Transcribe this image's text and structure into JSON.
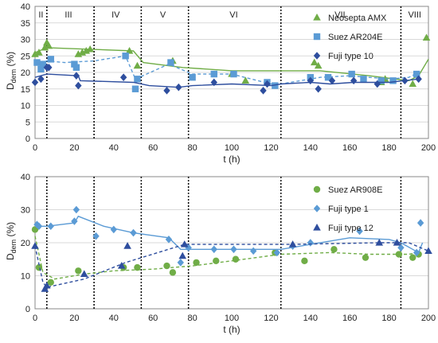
{
  "chart_data": [
    {
      "type": "scatter",
      "xlabel": "t (h)",
      "ylabel": "D",
      "ylabel_sub": "dem",
      "ylabel_unit": "(%)",
      "xlim": [
        0,
        200
      ],
      "ylim": [
        0,
        40
      ],
      "xticks": [
        0,
        20,
        40,
        60,
        80,
        100,
        120,
        140,
        160,
        180,
        200
      ],
      "yticks": [
        0,
        5,
        10,
        15,
        20,
        25,
        30,
        35,
        40
      ],
      "legend_position": "top-right",
      "phase_boundaries": [
        6,
        30,
        54,
        78,
        125,
        186
      ],
      "phases": [
        {
          "label": "II",
          "x": 3
        },
        {
          "label": "III",
          "x": 17
        },
        {
          "label": "IV",
          "x": 41
        },
        {
          "label": "V",
          "x": 65
        },
        {
          "label": "VI",
          "x": 101
        },
        {
          "label": "VII",
          "x": 155
        },
        {
          "label": "VIII",
          "x": 193
        }
      ],
      "series": [
        {
          "name": "Neosepta AMX",
          "color": "#70ad47",
          "marker": "triangle",
          "line": "solid",
          "points": [
            [
              0,
              25.5
            ],
            [
              2,
              26
            ],
            [
              5,
              27.5
            ],
            [
              6,
              29
            ],
            [
              7,
              28
            ],
            [
              22,
              25.5
            ],
            [
              24,
              26
            ],
            [
              26,
              26.5
            ],
            [
              28,
              27
            ],
            [
              48,
              26.5
            ],
            [
              52,
              22
            ],
            [
              70,
              23.5
            ],
            [
              100,
              19.5
            ],
            [
              107,
              17.5
            ],
            [
              142,
              23
            ],
            [
              144,
              22
            ],
            [
              176,
              17
            ],
            [
              178,
              18
            ],
            [
              192,
              16.5
            ],
            [
              199,
              30.5
            ]
          ],
          "trend": [
            [
              0,
              26
            ],
            [
              6,
              27.5
            ],
            [
              28,
              27
            ],
            [
              50,
              26.5
            ],
            [
              55,
              23
            ],
            [
              75,
              21.5
            ],
            [
              100,
              20.5
            ],
            [
              140,
              20.5
            ],
            [
              145,
              20.5
            ],
            [
              170,
              19
            ],
            [
              190,
              17.5
            ],
            [
              195,
              19
            ],
            [
              200,
              24
            ]
          ]
        },
        {
          "name": "Suez AR204E",
          "color": "#5b9bd5",
          "marker": "square",
          "line": "dashed",
          "points": [
            [
              1,
              23
            ],
            [
              3,
              21
            ],
            [
              4,
              22.5
            ],
            [
              8,
              24
            ],
            [
              20,
              22.5
            ],
            [
              21,
              21.5
            ],
            [
              46,
              25
            ],
            [
              51,
              15
            ],
            [
              52,
              18
            ],
            [
              69,
              23
            ],
            [
              80,
              18.5
            ],
            [
              91,
              19.5
            ],
            [
              101,
              19.5
            ],
            [
              118,
              17
            ],
            [
              122,
              16
            ],
            [
              140,
              18.5
            ],
            [
              149,
              18.5
            ],
            [
              161,
              19.5
            ],
            [
              167,
              18
            ],
            [
              176,
              17.5
            ],
            [
              182,
              17.5
            ],
            [
              194,
              19.5
            ]
          ],
          "trend": [
            [
              0,
              22.5
            ],
            [
              6,
              23.5
            ],
            [
              15,
              23
            ],
            [
              30,
              23.5
            ],
            [
              46,
              25
            ],
            [
              51,
              18
            ],
            [
              68,
              22.5
            ],
            [
              80,
              19.5
            ],
            [
              100,
              19.5
            ],
            [
              120,
              16.5
            ],
            [
              125,
              16.5
            ],
            [
              145,
              18.5
            ],
            [
              160,
              19
            ],
            [
              180,
              18
            ],
            [
              190,
              18.5
            ],
            [
              195,
              20
            ]
          ]
        },
        {
          "name": "Fuji type 10",
          "color": "#2e4e9e",
          "marker": "diamond",
          "line": "solid",
          "points": [
            [
              0,
              17
            ],
            [
              3,
              18
            ],
            [
              6,
              21.5
            ],
            [
              7,
              21.5
            ],
            [
              21,
              19
            ],
            [
              22,
              16
            ],
            [
              45,
              18.5
            ],
            [
              67,
              14.5
            ],
            [
              73,
              15.5
            ],
            [
              91,
              17
            ],
            [
              116,
              14.5
            ],
            [
              118,
              16.5
            ],
            [
              140,
              17.5
            ],
            [
              144,
              15
            ],
            [
              151,
              17.5
            ],
            [
              162,
              17.5
            ],
            [
              174,
              16.5
            ],
            [
              188,
              17.5
            ],
            [
              195,
              18
            ]
          ],
          "trend": [
            [
              0,
              18.5
            ],
            [
              6,
              19.5
            ],
            [
              22,
              19
            ],
            [
              23,
              17.5
            ],
            [
              50,
              17
            ],
            [
              58,
              16
            ],
            [
              73,
              15.5
            ],
            [
              80,
              16
            ],
            [
              100,
              16.5
            ],
            [
              120,
              16
            ],
            [
              125,
              16.5
            ],
            [
              140,
              17
            ],
            [
              150,
              16.5
            ],
            [
              162,
              17
            ],
            [
              180,
              17
            ],
            [
              195,
              18
            ]
          ]
        }
      ]
    },
    {
      "type": "scatter",
      "xlabel": "t (h)",
      "ylabel": "D",
      "ylabel_sub": "dem",
      "ylabel_unit": "(%)",
      "xlim": [
        0,
        200
      ],
      "ylim": [
        0,
        40
      ],
      "xticks": [
        0,
        20,
        40,
        60,
        80,
        100,
        120,
        140,
        160,
        180,
        200
      ],
      "yticks": [
        0,
        10,
        20,
        30,
        40
      ],
      "legend_position": "top-right",
      "phase_boundaries": [
        6,
        30,
        54,
        78,
        125,
        186
      ],
      "series": [
        {
          "name": "Suez AR908E",
          "color": "#70ad47",
          "marker": "circle",
          "line": "dashed",
          "points": [
            [
              0,
              24
            ],
            [
              2,
              12.5
            ],
            [
              8,
              8
            ],
            [
              22,
              11.5
            ],
            [
              45,
              12.5
            ],
            [
              52,
              12.5
            ],
            [
              67,
              13
            ],
            [
              70,
              11
            ],
            [
              82,
              14
            ],
            [
              92,
              14.5
            ],
            [
              102,
              15
            ],
            [
              122,
              17
            ],
            [
              137,
              14.5
            ],
            [
              152,
              18
            ],
            [
              168,
              15.5
            ],
            [
              185,
              16.5
            ],
            [
              192,
              15.5
            ],
            [
              195,
              16.5
            ]
          ],
          "trend": [
            [
              0,
              22
            ],
            [
              4,
              11
            ],
            [
              10,
              9
            ],
            [
              25,
              10.5
            ],
            [
              40,
              11.5
            ],
            [
              60,
              12
            ],
            [
              70,
              12.5
            ],
            [
              80,
              13
            ],
            [
              100,
              14.5
            ],
            [
              125,
              16.5
            ],
            [
              150,
              17
            ],
            [
              170,
              16.5
            ],
            [
              190,
              16.5
            ],
            [
              195,
              17
            ]
          ]
        },
        {
          "name": "Fuji type 1",
          "color": "#5b9bd5",
          "marker": "diamond",
          "line": "solid",
          "points": [
            [
              1,
              25.5
            ],
            [
              2,
              25
            ],
            [
              8,
              25
            ],
            [
              20,
              26.5
            ],
            [
              21,
              30
            ],
            [
              31,
              22
            ],
            [
              40,
              24
            ],
            [
              50,
              23
            ],
            [
              68,
              21
            ],
            [
              74,
              14
            ],
            [
              78,
              18.5
            ],
            [
              91,
              18
            ],
            [
              101,
              18
            ],
            [
              111,
              17.5
            ],
            [
              123,
              17
            ],
            [
              131,
              19
            ],
            [
              140,
              20
            ],
            [
              165,
              23.5
            ],
            [
              186,
              18.5
            ],
            [
              194,
              17
            ],
            [
              196,
              26
            ]
          ],
          "trend": [
            [
              0,
              25
            ],
            [
              6,
              25
            ],
            [
              20,
              26
            ],
            [
              22,
              28
            ],
            [
              35,
              25
            ],
            [
              50,
              23
            ],
            [
              68,
              21.5
            ],
            [
              74,
              18
            ],
            [
              80,
              18
            ],
            [
              100,
              18
            ],
            [
              125,
              18
            ],
            [
              140,
              19.5
            ],
            [
              160,
              21.5
            ],
            [
              180,
              21
            ],
            [
              186,
              20
            ],
            [
              192,
              18
            ],
            [
              195,
              17
            ],
            [
              197,
              20
            ]
          ]
        },
        {
          "name": "Fuji type 12",
          "color": "#2e4e9e",
          "marker": "triangle",
          "line": "dashed",
          "points": [
            [
              0,
              19
            ],
            [
              5,
              6
            ],
            [
              6,
              7
            ],
            [
              25,
              10.5
            ],
            [
              44,
              13
            ],
            [
              47,
              19
            ],
            [
              75,
              16
            ],
            [
              76,
              19.5
            ],
            [
              131,
              19.5
            ],
            [
              175,
              20
            ],
            [
              184,
              20
            ],
            [
              200,
              17.5
            ]
          ],
          "trend": [
            [
              0,
              19
            ],
            [
              4,
              8
            ],
            [
              6,
              6.5
            ],
            [
              25,
              9
            ],
            [
              46,
              14
            ],
            [
              76,
              19.5
            ],
            [
              100,
              19.5
            ],
            [
              130,
              19.5
            ],
            [
              175,
              20
            ],
            [
              190,
              20
            ],
            [
              200,
              17.5
            ]
          ]
        }
      ]
    }
  ]
}
